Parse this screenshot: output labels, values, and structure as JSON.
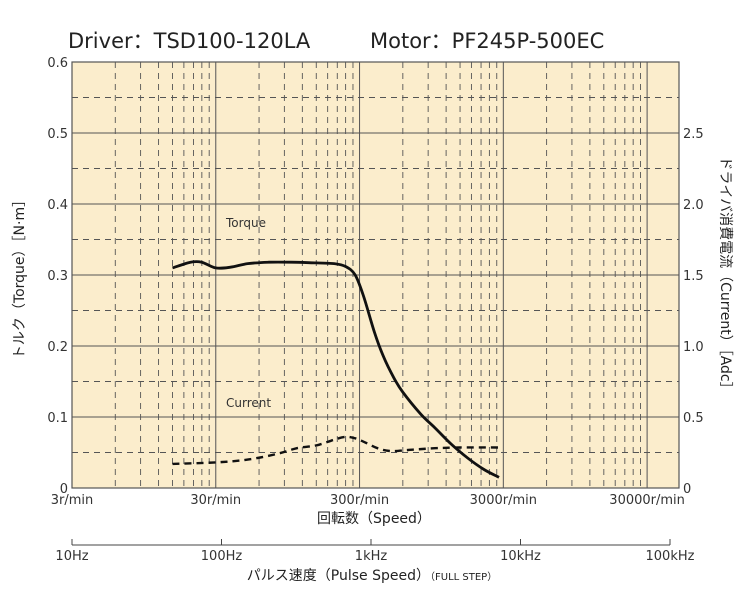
{
  "header": {
    "driver": "Driver：TSD100-120LA",
    "motor": "Motor：PF245P-500EC"
  },
  "chart_data": {
    "type": "line",
    "x_scale": "log",
    "xlim_rpm": [
      3,
      50000
    ],
    "left_axis": {
      "label": "トルク（Torque）［N·m］",
      "ticks": [
        "0",
        "0.1",
        "0.2",
        "0.3",
        "0.4",
        "0.5",
        "0.6"
      ],
      "ylim": [
        0,
        0.6
      ]
    },
    "right_axis": {
      "label": "ドライバ消費電流（Current）［Adc］",
      "ticks": [
        "0",
        "0.5",
        "1.0",
        "1.5",
        "2.0",
        "2.5"
      ],
      "ylim": [
        0,
        3.0
      ]
    },
    "speed_axis": {
      "label": "回転数（Speed）",
      "ticks": [
        "3r/min",
        "30r/min",
        "300r/min",
        "3000r/min",
        "30000r/min"
      ]
    },
    "pulse_axis": {
      "label_main": "パルス速度（Pulse Speed）",
      "label_suffix": "（FULL STEP）",
      "ticks": [
        "10Hz",
        "100Hz",
        "1kHz",
        "10kHz",
        "100kHz"
      ]
    },
    "grid": true,
    "background_color": "#fbedcc",
    "grid_color": "#555555",
    "series": [
      {
        "name": "Torque",
        "style": "solid",
        "axis": "left",
        "points": [
          [
            15,
            0.31
          ],
          [
            20,
            0.318
          ],
          [
            24,
            0.318
          ],
          [
            30,
            0.31
          ],
          [
            38,
            0.311
          ],
          [
            50,
            0.316
          ],
          [
            70,
            0.318
          ],
          [
            100,
            0.318
          ],
          [
            150,
            0.317
          ],
          [
            200,
            0.316
          ],
          [
            240,
            0.312
          ],
          [
            280,
            0.3
          ],
          [
            320,
            0.27
          ],
          [
            380,
            0.22
          ],
          [
            440,
            0.185
          ],
          [
            520,
            0.155
          ],
          [
            600,
            0.135
          ],
          [
            800,
            0.104
          ],
          [
            1000,
            0.085
          ],
          [
            1300,
            0.062
          ],
          [
            1700,
            0.042
          ],
          [
            2200,
            0.026
          ],
          [
            2800,
            0.015
          ]
        ]
      },
      {
        "name": "Current",
        "style": "dashed",
        "axis": "right",
        "points": [
          [
            15,
            0.17
          ],
          [
            30,
            0.18
          ],
          [
            50,
            0.2
          ],
          [
            80,
            0.24
          ],
          [
            110,
            0.28
          ],
          [
            150,
            0.3
          ],
          [
            200,
            0.34
          ],
          [
            240,
            0.36
          ],
          [
            280,
            0.35
          ],
          [
            330,
            0.32
          ],
          [
            400,
            0.28
          ],
          [
            500,
            0.26
          ],
          [
            700,
            0.27
          ],
          [
            1000,
            0.28
          ],
          [
            1500,
            0.285
          ],
          [
            2800,
            0.285
          ]
        ]
      }
    ]
  }
}
